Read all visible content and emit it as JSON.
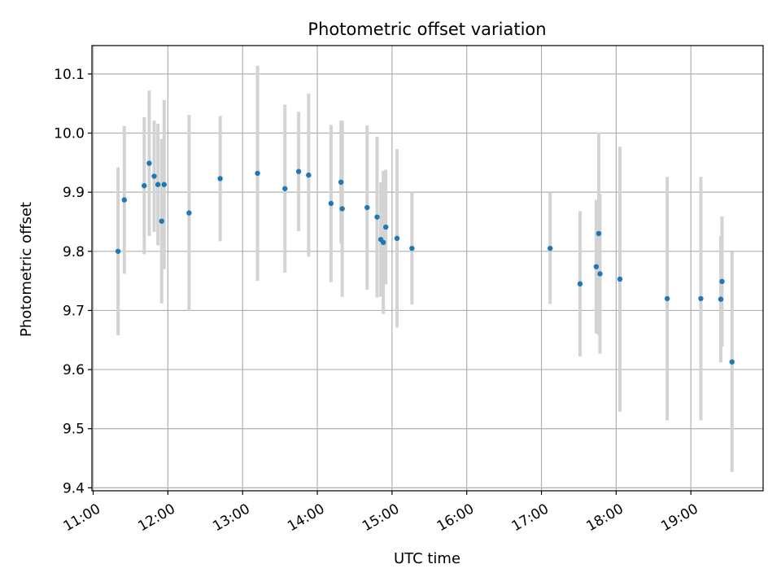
{
  "chart_data": {
    "type": "scatter",
    "title": "Photometric offset variation",
    "xlabel": "UTC time",
    "ylabel": "Photometric offset",
    "xlim": [
      "10:59",
      "19:58"
    ],
    "ylim": [
      9.395,
      10.148
    ],
    "x_ticks": [
      "11:00",
      "12:00",
      "13:00",
      "14:00",
      "15:00",
      "16:00",
      "17:00",
      "18:00",
      "19:00"
    ],
    "y_ticks": [
      9.4,
      9.5,
      9.6,
      9.7,
      9.8,
      9.9,
      10.0,
      10.1
    ],
    "grid": true,
    "colors": {
      "point": "#1f77b4",
      "errorbar": "#d3d3d3",
      "grid": "#b0b0b0"
    },
    "series": [
      {
        "points": [
          {
            "x": "11:20",
            "y": 9.8,
            "err": 0.142
          },
          {
            "x": "11:25",
            "y": 9.887,
            "err": 0.125
          },
          {
            "x": "11:41",
            "y": 9.911,
            "err": 0.116
          },
          {
            "x": "11:45",
            "y": 9.949,
            "err": 0.123
          },
          {
            "x": "11:49",
            "y": 9.927,
            "err": 0.094
          },
          {
            "x": "11:52",
            "y": 9.913,
            "err": 0.103
          },
          {
            "x": "11:55",
            "y": 9.851,
            "err": 0.139
          },
          {
            "x": "11:57",
            "y": 9.913,
            "err": 0.143
          },
          {
            "x": "12:17",
            "y": 9.865,
            "err": 0.166
          },
          {
            "x": "12:42",
            "y": 9.923,
            "err": 0.106
          },
          {
            "x": "13:12",
            "y": 9.932,
            "err": 0.182
          },
          {
            "x": "13:34",
            "y": 9.906,
            "err": 0.142
          },
          {
            "x": "13:45",
            "y": 9.935,
            "err": 0.101
          },
          {
            "x": "13:53",
            "y": 9.929,
            "err": 0.138
          },
          {
            "x": "14:11",
            "y": 9.881,
            "err": 0.133
          },
          {
            "x": "14:19",
            "y": 9.917,
            "err": 0.104
          },
          {
            "x": "14:20",
            "y": 9.872,
            "err": 0.149
          },
          {
            "x": "14:40",
            "y": 9.874,
            "err": 0.139
          },
          {
            "x": "14:48",
            "y": 9.858,
            "err": 0.136
          },
          {
            "x": "14:51",
            "y": 9.82,
            "err": 0.097
          },
          {
            "x": "14:53",
            "y": 9.815,
            "err": 0.121
          },
          {
            "x": "14:55",
            "y": 9.841,
            "err": 0.097
          },
          {
            "x": "15:04",
            "y": 9.822,
            "err": 0.151
          },
          {
            "x": "15:16",
            "y": 9.805,
            "err": 0.095
          },
          {
            "x": "17:07",
            "y": 9.805,
            "err": 0.094
          },
          {
            "x": "17:31",
            "y": 9.745,
            "err": 0.123
          },
          {
            "x": "17:44",
            "y": 9.774,
            "err": 0.113
          },
          {
            "x": "17:46",
            "y": 9.83,
            "err": 0.171
          },
          {
            "x": "17:47",
            "y": 9.762,
            "err": 0.135
          },
          {
            "x": "18:03",
            "y": 9.753,
            "err": 0.224
          },
          {
            "x": "18:41",
            "y": 9.72,
            "err": 0.206
          },
          {
            "x": "19:08",
            "y": 9.72,
            "err": 0.206
          },
          {
            "x": "19:24",
            "y": 9.719,
            "err": 0.107
          },
          {
            "x": "19:25",
            "y": 9.749,
            "err": 0.11
          },
          {
            "x": "19:33",
            "y": 9.613,
            "err": 0.186
          }
        ]
      }
    ]
  }
}
